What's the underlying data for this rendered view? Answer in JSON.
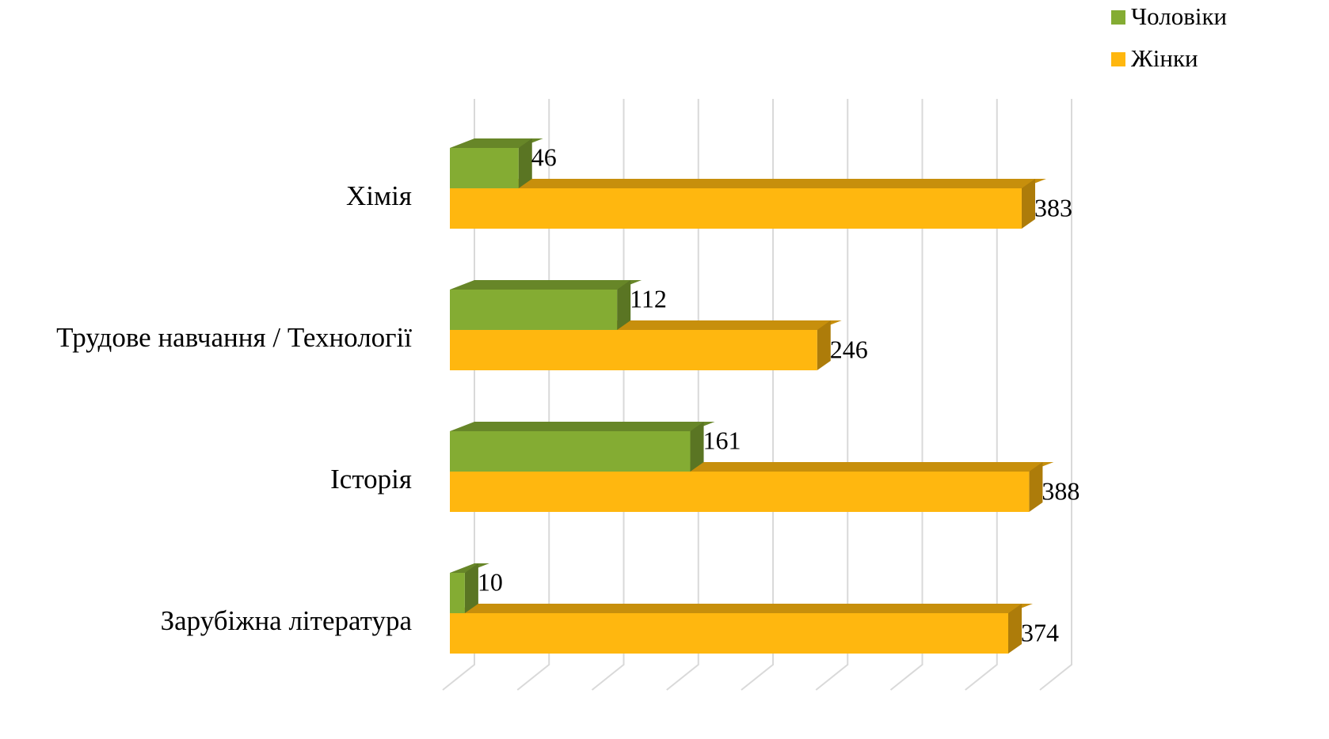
{
  "chart_data": {
    "type": "bar3d_horizontal",
    "categories": [
      "Хімія",
      "Трудове навчання / Технології",
      "Історія",
      "Зарубіжна література"
    ],
    "series": [
      {
        "name": "Чоловіки",
        "color": "#84ac33",
        "values": [
          46,
          112,
          161,
          10
        ]
      },
      {
        "name": "Жінки",
        "color": "#ffb70f",
        "values": [
          383,
          246,
          388,
          374
        ]
      }
    ],
    "xlim": [
      0,
      400
    ],
    "xticks": [
      0,
      50,
      100,
      150,
      200,
      250,
      300,
      350,
      400
    ],
    "grid": true,
    "legend": "top-right"
  }
}
